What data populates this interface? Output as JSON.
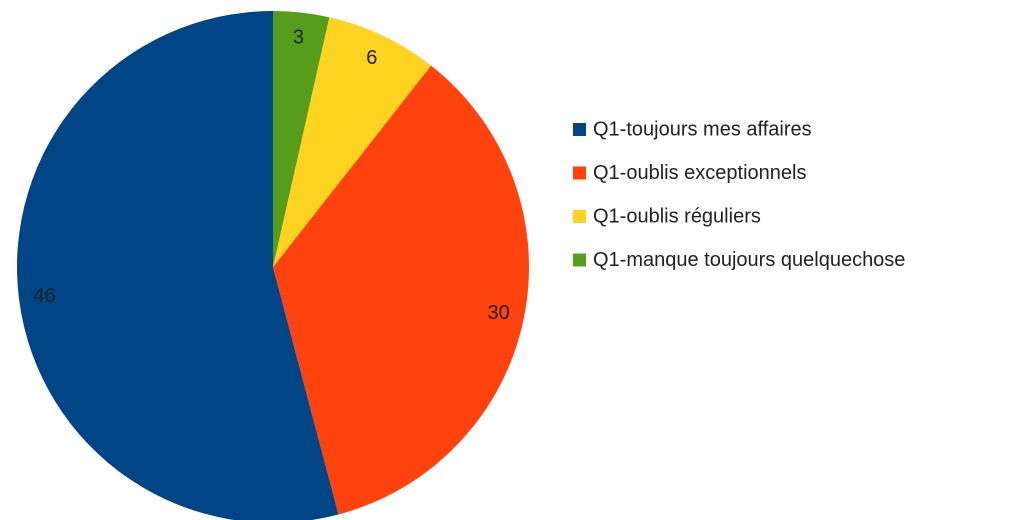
{
  "chart_data": {
    "type": "pie",
    "categories": [
      "Q1-toujours mes affaires",
      "Q1-oublis exceptionnels",
      "Q1-oublis réguliers",
      "Q1-manque toujours quelquechose"
    ],
    "values": [
      46,
      30,
      6,
      3
    ],
    "colors": [
      "#004586",
      "#ff420e",
      "#ffd320",
      "#579d1c"
    ],
    "legend": "right"
  }
}
